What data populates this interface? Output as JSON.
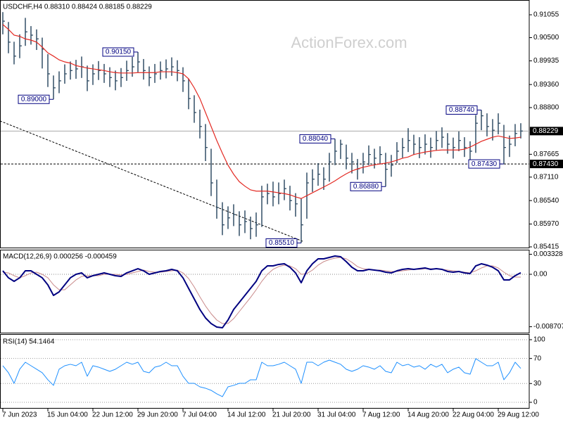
{
  "chart_data": [
    {
      "type": "ohlc",
      "title": "USDCHF,H4  0.88310 0.88424 0.88185 0.88229",
      "watermark": "ActionForex.com",
      "color": "#23415a",
      "high": [
        0.9112,
        0.9088,
        0.904,
        0.9058,
        0.9098,
        0.9078,
        0.907,
        0.905,
        0.901,
        0.8958,
        0.8968,
        0.8985,
        0.8992,
        0.8996,
        0.9004,
        0.8982,
        0.8985,
        0.8993,
        0.8986,
        0.8978,
        0.897,
        0.8976,
        0.8994,
        0.9003,
        0.9015,
        0.8998,
        0.898,
        0.8986,
        0.8992,
        0.8997,
        0.9002,
        0.8995,
        0.8978,
        0.895,
        0.891,
        0.8875,
        0.884,
        0.878,
        0.8705,
        0.865,
        0.864,
        0.8645,
        0.8628,
        0.863,
        0.8615,
        0.8625,
        0.869,
        0.8695,
        0.87,
        0.8698,
        0.8705,
        0.869,
        0.8672,
        0.866,
        0.8722,
        0.873,
        0.8745,
        0.8735,
        0.877,
        0.8804,
        0.8802,
        0.879,
        0.877,
        0.8755,
        0.877,
        0.8788,
        0.878,
        0.8786,
        0.877,
        0.8765,
        0.8796,
        0.8806,
        0.883,
        0.8814,
        0.8808,
        0.8815,
        0.8807,
        0.8823,
        0.8832,
        0.8818,
        0.8807,
        0.8822,
        0.8808,
        0.8798,
        0.8862,
        0.8874,
        0.8866,
        0.8852,
        0.8866,
        0.8838,
        0.8812,
        0.884,
        0.8842
      ],
      "low": [
        0.9058,
        0.9012,
        0.8985,
        0.9,
        0.903,
        0.9033,
        0.902,
        0.8975,
        0.893,
        0.89,
        0.8915,
        0.8938,
        0.8948,
        0.895,
        0.8952,
        0.892,
        0.8935,
        0.8947,
        0.894,
        0.893,
        0.8922,
        0.893,
        0.8945,
        0.8955,
        0.8966,
        0.8948,
        0.8932,
        0.894,
        0.8948,
        0.8951,
        0.8957,
        0.8944,
        0.8918,
        0.8876,
        0.8843,
        0.8805,
        0.875,
        0.8665,
        0.861,
        0.857,
        0.8585,
        0.8592,
        0.8568,
        0.8575,
        0.856,
        0.8566,
        0.859,
        0.8645,
        0.864,
        0.8645,
        0.8655,
        0.863,
        0.8615,
        0.8551,
        0.861,
        0.8675,
        0.869,
        0.868,
        0.87,
        0.874,
        0.8755,
        0.873,
        0.872,
        0.8705,
        0.872,
        0.874,
        0.8732,
        0.8742,
        0.8688,
        0.8712,
        0.8745,
        0.8758,
        0.8772,
        0.8765,
        0.8757,
        0.8766,
        0.8758,
        0.8775,
        0.8782,
        0.8768,
        0.8756,
        0.8774,
        0.876,
        0.875,
        0.877,
        0.8825,
        0.881,
        0.88,
        0.8815,
        0.8743,
        0.876,
        0.8786,
        0.8805
      ],
      "close": [
        0.909,
        0.9039,
        0.9005,
        0.903,
        0.9064,
        0.9056,
        0.9047,
        0.9022,
        0.8962,
        0.8928,
        0.8945,
        0.8962,
        0.897,
        0.8974,
        0.8979,
        0.8945,
        0.8962,
        0.897,
        0.8962,
        0.8953,
        0.8945,
        0.8953,
        0.897,
        0.8979,
        0.8991,
        0.897,
        0.8953,
        0.8962,
        0.897,
        0.8974,
        0.8979,
        0.897,
        0.8945,
        0.8902,
        0.8868,
        0.8834,
        0.8783,
        0.8697,
        0.8637,
        0.8595,
        0.8612,
        0.862,
        0.8595,
        0.8603,
        0.8586,
        0.8595,
        0.8663,
        0.8671,
        0.8663,
        0.8671,
        0.8683,
        0.8654,
        0.8646,
        0.8595,
        0.8697,
        0.8706,
        0.8718,
        0.8706,
        0.8748,
        0.8774,
        0.8791,
        0.8757,
        0.8748,
        0.8731,
        0.8748,
        0.8766,
        0.8757,
        0.8766,
        0.873,
        0.874,
        0.8774,
        0.8783,
        0.88,
        0.8791,
        0.8783,
        0.8791,
        0.8783,
        0.88,
        0.8808,
        0.8791,
        0.8783,
        0.88,
        0.8783,
        0.8774,
        0.8842,
        0.886,
        0.8834,
        0.8825,
        0.8842,
        0.8783,
        0.8791,
        0.8817,
        0.8823
      ],
      "moving_average": {
        "color": "#e32a23",
        "values": [
          0.9082,
          0.907,
          0.9056,
          0.9053,
          0.9047,
          0.9044,
          0.9039,
          0.9027,
          0.9013,
          0.9005,
          0.8996,
          0.8991,
          0.8988,
          0.8982,
          0.8979,
          0.8976,
          0.8974,
          0.8972,
          0.897,
          0.8967,
          0.8965,
          0.8964,
          0.8964,
          0.8964,
          0.8965,
          0.8965,
          0.8965,
          0.8965,
          0.8967,
          0.8967,
          0.8967,
          0.8965,
          0.8962,
          0.895,
          0.8928,
          0.8902,
          0.8868,
          0.8834,
          0.88,
          0.8769,
          0.874,
          0.8718,
          0.87,
          0.8689,
          0.868,
          0.8677,
          0.8677,
          0.8677,
          0.8675,
          0.8673,
          0.8671,
          0.8668,
          0.8663,
          0.8659,
          0.8666,
          0.8673,
          0.868,
          0.8687,
          0.8694,
          0.8702,
          0.8711,
          0.8719,
          0.8726,
          0.8731,
          0.8735,
          0.8738,
          0.8741,
          0.8743,
          0.8745,
          0.8748,
          0.8752,
          0.8757,
          0.876,
          0.8766,
          0.8769,
          0.8772,
          0.8774,
          0.8776,
          0.8777,
          0.8777,
          0.8777,
          0.8777,
          0.8779,
          0.8784,
          0.8791,
          0.8798,
          0.8803,
          0.8808,
          0.8811,
          0.8808,
          0.8805,
          0.8806,
          0.8808
        ]
      },
      "ylim": [
        0.85398,
        0.9138
      ],
      "yticks": [
        0.91055,
        {
          "value": 0.905,
          "label": "0.90500"
        },
        0.89935,
        {
          "value": 0.8936,
          "label": "0.89360"
        },
        {
          "value": 0.888,
          "label": "0.88800"
        },
        0.87665,
        {
          "value": 0.8711,
          "label": "0.87110"
        },
        {
          "value": 0.8654,
          "label": "0.86540"
        },
        {
          "value": 0.8597,
          "label": "0.85970"
        },
        0.85415
      ],
      "price_lines": [
        {
          "value": 0.88229,
          "style": "solid"
        },
        {
          "value": 0.8743,
          "label": "0.87430",
          "style": "dashed"
        }
      ],
      "annotations": [
        {
          "value": 0.9015,
          "label": "0.90150"
        },
        {
          "value": 0.89,
          "label": "0.89000"
        },
        {
          "value": 0.8804,
          "label": "0.88040"
        },
        {
          "value": 0.8688,
          "label": "0.86880"
        },
        {
          "value": 0.8551,
          "label": "0.85510"
        },
        {
          "value": 0.8874,
          "label": "0.88740"
        },
        {
          "value": 0.8743,
          "label": "0.87430"
        }
      ]
    },
    {
      "type": "line",
      "title": "MACD(12,26,9) 0.000256 -0.000459",
      "series": [
        {
          "color": "#000080",
          "values": [
            0.00058,
            -0.00058,
            -0.00117,
            -0.00058,
            0.00058,
            0.00058,
            0,
            -0.00058,
            -0.00175,
            -0.0035,
            -0.00292,
            -0.00175,
            -0.00058,
            0,
            0.00023,
            -0.00058,
            -0.00023,
            0,
            0.00023,
            0,
            -0.00023,
            -0.00035,
            0.00023,
            0.00058,
            0.00093,
            0.00058,
            0,
            0.00023,
            0.00047,
            0.00058,
            0.00082,
            0.00058,
            -0.00058,
            -0.00234,
            -0.00409,
            -0.00584,
            -0.00724,
            -0.00818,
            -0.00876,
            -0.00888,
            -0.00759,
            -0.00584,
            -0.00467,
            -0.0035,
            -0.00234,
            -0.00117,
            0.00058,
            0.0014,
            0.0014,
            0.00164,
            0.00175,
            0.00117,
            0.00023,
            -0.0014,
            0.00058,
            0.00175,
            0.00257,
            0.00257,
            0.0028,
            0.00304,
            0.00292,
            0.0021,
            0.00117,
            0.00058,
            0.00058,
            0.00082,
            0.0007,
            0.00058,
            0.00035,
            0.00023,
            0.00058,
            0.00082,
            0.00093,
            0.00082,
            0.00093,
            0.00105,
            0.00082,
            0.00093,
            0.00082,
            0.00047,
            0.00035,
            0.00047,
            0.00023,
            0.00012,
            0.0014,
            0.00175,
            0.00152,
            0.00117,
            0.00058,
            -0.00093,
            -0.00093,
            -0.00023,
            0.00026
          ]
        },
        {
          "color": "#c98a8a",
          "values": [
            0.00035,
            0.00023,
            -0.00023,
            -0.00058,
            -0.00023,
            0.00023,
            0.00035,
            0,
            -0.00058,
            -0.00175,
            -0.00257,
            -0.00257,
            -0.00175,
            -0.00093,
            -0.00035,
            -0.00023,
            -0.00023,
            -0.00023,
            0,
            0,
            0,
            -0.00012,
            0,
            0.00023,
            0.00047,
            0.0007,
            0.00047,
            0.00035,
            0.00035,
            0.00047,
            0.00058,
            0.0007,
            0.00023,
            -0.0007,
            -0.0021,
            -0.00374,
            -0.00526,
            -0.00654,
            -0.00759,
            -0.00818,
            -0.00818,
            -0.00736,
            -0.00619,
            -0.00502,
            -0.00385,
            -0.00257,
            -0.00117,
            0,
            0.00082,
            0.00128,
            0.00152,
            0.0014,
            0.00093,
            0,
            0.00012,
            0.0007,
            0.00152,
            0.0021,
            0.00245,
            0.00269,
            0.0028,
            0.00257,
            0.00199,
            0.00128,
            0.00093,
            0.00082,
            0.0007,
            0.0007,
            0.00058,
            0.00047,
            0.00047,
            0.00058,
            0.0007,
            0.00082,
            0.00082,
            0.00093,
            0.00093,
            0.00093,
            0.00082,
            0.0007,
            0.00058,
            0.00047,
            0.00035,
            0.00023,
            0.00058,
            0.00105,
            0.0014,
            0.0014,
            0.00105,
            0.00035,
            -0.00023,
            -0.00046,
            -0.00046
          ]
        }
      ],
      "ylim": [
        -0.009694,
        0.003854
      ],
      "yticks": [
        0.003328,
        {
          "value": 0,
          "label": "0.00"
        },
        -0.008707
      ]
    },
    {
      "type": "line",
      "title": "RSI(14) 54.1464",
      "categories": [
        "7 Jun 2023",
        null,
        null,
        null,
        null,
        null,
        null,
        null,
        "15 Jun 04:00",
        null,
        null,
        null,
        null,
        null,
        null,
        null,
        "22 Jun 12:00",
        null,
        null,
        null,
        null,
        null,
        null,
        null,
        "29 Jun 20:00",
        null,
        null,
        null,
        null,
        null,
        null,
        null,
        "7 Jul 04:00",
        null,
        null,
        null,
        null,
        null,
        null,
        null,
        "14 Jul 12:00",
        null,
        null,
        null,
        null,
        null,
        null,
        null,
        "21 Jul 20:00",
        null,
        null,
        null,
        null,
        null,
        null,
        null,
        "31 Jul 04:00",
        null,
        null,
        null,
        null,
        null,
        null,
        null,
        "7 Aug 12:00",
        null,
        null,
        null,
        null,
        null,
        null,
        null,
        "14 Aug 20:00",
        null,
        null,
        null,
        null,
        null,
        null,
        null,
        "22 Aug 04:00",
        null,
        null,
        null,
        null,
        null,
        null,
        null,
        "29 Aug 12:00",
        null,
        null,
        null,
        null
      ],
      "series": [
        {
          "color": "#1e90ff",
          "values": [
            58.4,
            47.2,
            30.3,
            52.8,
            64.0,
            58.4,
            52.8,
            47.2,
            36.0,
            27.0,
            52.8,
            58.4,
            60.7,
            58.4,
            64.0,
            41.6,
            58.4,
            56.2,
            52.8,
            49.4,
            52.8,
            58.4,
            64.0,
            60.7,
            64.0,
            49.4,
            47.2,
            56.2,
            58.4,
            64.0,
            58.4,
            58.4,
            41.6,
            30.3,
            30.3,
            24.7,
            22.5,
            19.1,
            13.5,
            9.0,
            24.7,
            27.0,
            30.3,
            30.3,
            36.0,
            36.0,
            64.0,
            58.4,
            58.4,
            60.7,
            64.0,
            58.4,
            52.8,
            30.3,
            64.0,
            64.0,
            58.4,
            64.0,
            67.4,
            64.0,
            60.7,
            52.8,
            49.4,
            52.8,
            58.4,
            56.2,
            52.8,
            58.4,
            49.4,
            47.2,
            64.0,
            58.4,
            60.7,
            56.2,
            58.4,
            52.8,
            60.7,
            56.2,
            60.7,
            47.2,
            52.8,
            56.2,
            47.2,
            44.9,
            69.7,
            64.0,
            58.4,
            58.4,
            64.0,
            36.0,
            47.2,
            64.0,
            54.1
          ]
        }
      ],
      "ylim": [
        -9,
        106.7
      ],
      "yticks": [
        100,
        70,
        30,
        0
      ],
      "grid": true
    }
  ]
}
